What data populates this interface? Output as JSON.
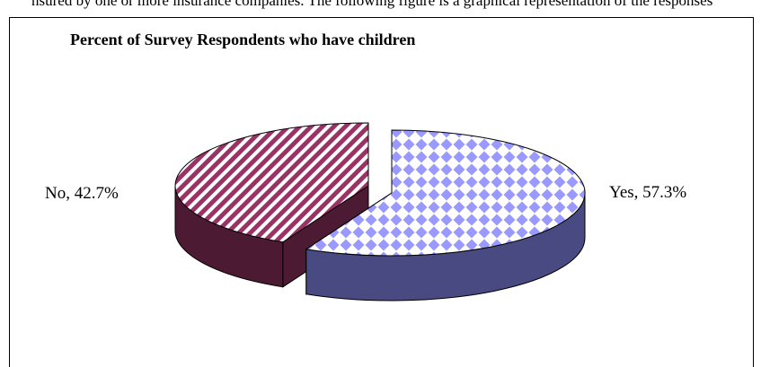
{
  "page": {
    "top_text": "nsured by one or more insurance companies. The following figure is a graphical representation of the responses"
  },
  "chart_data": {
    "type": "pie",
    "title": "Percent of Survey Respondents who have children",
    "categories": [
      "Yes",
      "No"
    ],
    "values": [
      57.3,
      42.7
    ],
    "data_labels": [
      "Yes, 57.3%",
      "No, 42.7%"
    ],
    "legend": "none",
    "three_d": true,
    "exploded": true,
    "colors": {
      "Yes": {
        "top": "#9999ff",
        "side": "#4a4a82",
        "pattern": "diamond-check"
      },
      "No": {
        "top": "#993366",
        "side": "#4d1a33",
        "pattern": "diagonal-stripes"
      }
    }
  }
}
